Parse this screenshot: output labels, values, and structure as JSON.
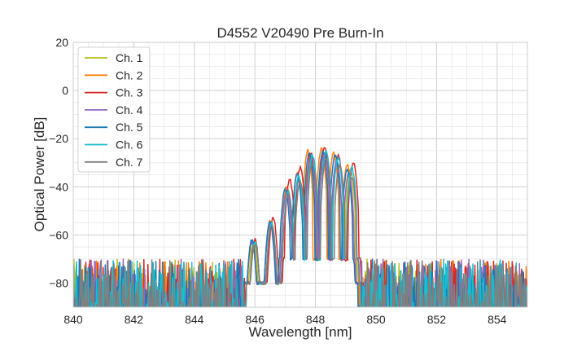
{
  "chart_data": {
    "type": "line",
    "title": "D4552 V20490 Pre Burn-In",
    "xlabel": "Wavelength [nm]",
    "ylabel": "Optical Power [dB]",
    "xlim": [
      840,
      855
    ],
    "ylim": [
      -90,
      20
    ],
    "xticks": [
      "840",
      "842",
      "844",
      "846",
      "848",
      "850",
      "852",
      "854"
    ],
    "yticks": [
      "20",
      "0",
      "−20",
      "−40",
      "−60",
      "−80"
    ],
    "grid": true,
    "legend_position": "top-left",
    "noise_floor_db": [
      -90,
      -72
    ],
    "series": [
      {
        "name": "Ch. 1",
        "color": "#bcbd22",
        "band_nm": [
          845.7,
          849.5
        ],
        "peaks": [
          [
            845.95,
            -63
          ],
          [
            846.55,
            -55
          ],
          [
            847.1,
            -42
          ],
          [
            847.45,
            -37
          ],
          [
            847.8,
            -30
          ],
          [
            848.25,
            -28
          ],
          [
            848.7,
            -30
          ],
          [
            849.15,
            -33
          ]
        ]
      },
      {
        "name": "Ch. 2",
        "color": "#ff7f0e",
        "band_nm": [
          845.6,
          849.4
        ],
        "peaks": [
          [
            845.9,
            -62
          ],
          [
            846.5,
            -54
          ],
          [
            847.05,
            -40
          ],
          [
            847.4,
            -34
          ],
          [
            847.75,
            -25
          ],
          [
            848.2,
            -24
          ],
          [
            848.6,
            -26
          ],
          [
            849.05,
            -31
          ]
        ]
      },
      {
        "name": "Ch. 3",
        "color": "#d62728",
        "band_nm": [
          845.7,
          849.6
        ],
        "peaks": [
          [
            846.0,
            -62
          ],
          [
            846.6,
            -53
          ],
          [
            847.15,
            -37
          ],
          [
            847.5,
            -32
          ],
          [
            847.85,
            -26
          ],
          [
            848.3,
            -24
          ],
          [
            848.75,
            -27
          ],
          [
            849.25,
            -30
          ]
        ]
      },
      {
        "name": "Ch. 4",
        "color": "#9467bd",
        "band_nm": [
          845.6,
          849.5
        ],
        "peaks": [
          [
            845.9,
            -63
          ],
          [
            846.5,
            -55
          ],
          [
            847.05,
            -42
          ],
          [
            847.45,
            -36
          ],
          [
            847.85,
            -28
          ],
          [
            848.3,
            -26
          ],
          [
            848.7,
            -29
          ],
          [
            849.1,
            -34
          ]
        ]
      },
      {
        "name": "Ch. 5",
        "color": "#1f77b4",
        "band_nm": [
          845.6,
          849.4
        ],
        "peaks": [
          [
            845.9,
            -62
          ],
          [
            846.5,
            -54
          ],
          [
            847.0,
            -41
          ],
          [
            847.4,
            -35
          ],
          [
            847.8,
            -26
          ],
          [
            848.25,
            -25
          ],
          [
            848.65,
            -27
          ],
          [
            849.05,
            -33
          ]
        ]
      },
      {
        "name": "Ch. 6",
        "color": "#17becf",
        "band_nm": [
          845.7,
          849.5
        ],
        "peaks": [
          [
            846.0,
            -63
          ],
          [
            846.55,
            -55
          ],
          [
            847.1,
            -42
          ],
          [
            847.45,
            -36
          ],
          [
            847.9,
            -27
          ],
          [
            848.35,
            -25
          ],
          [
            848.75,
            -28
          ],
          [
            849.2,
            -32
          ]
        ]
      },
      {
        "name": "Ch. 7",
        "color": "#7f7f7f",
        "band_nm": [
          845.7,
          849.5
        ],
        "peaks": [
          [
            846.0,
            -64
          ],
          [
            846.55,
            -56
          ],
          [
            847.1,
            -43
          ],
          [
            847.5,
            -38
          ],
          [
            847.9,
            -30
          ],
          [
            848.35,
            -28
          ],
          [
            848.8,
            -31
          ],
          [
            849.2,
            -36
          ]
        ]
      }
    ]
  }
}
